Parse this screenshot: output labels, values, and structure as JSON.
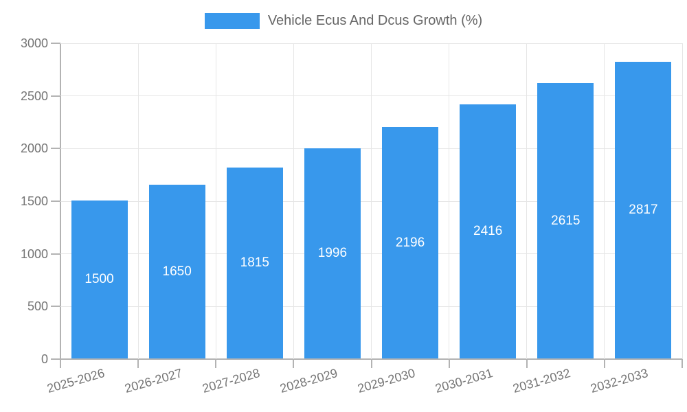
{
  "chart_data": {
    "type": "bar",
    "title": "Vehicle Ecus And Dcus Growth (%)",
    "categories": [
      "2025-2026",
      "2026-2027",
      "2027-2028",
      "2028-2029",
      "2029-2030",
      "2030-2031",
      "2031-2032",
      "2032-2033"
    ],
    "series": [
      {
        "name": "Vehicle Ecus And Dcus Growth (%)",
        "values": [
          1500,
          1650,
          1815,
          1996,
          2196,
          2416,
          2615,
          2817
        ]
      }
    ],
    "bar_value_labels": [
      "1500",
      "1650",
      "1815",
      "1996",
      "2196",
      "2416",
      "2615",
      "2817"
    ],
    "xlabel": "",
    "ylabel": "",
    "ylim": [
      0,
      3000
    ],
    "yticks": [
      0,
      500,
      1000,
      1500,
      2000,
      2500,
      3000
    ],
    "ytick_labels": [
      "0",
      "500",
      "1000",
      "1500",
      "2000",
      "2500",
      "3000"
    ],
    "grid": true,
    "legend_position": "top",
    "colors": {
      "bar": "#3898ec",
      "bar_value_text": "#ffffff",
      "grid": "#e6e6e6",
      "axis_line": "#b3b3b3",
      "tick_text": "#757575",
      "legend_text": "#666666",
      "background": "#ffffff"
    }
  }
}
